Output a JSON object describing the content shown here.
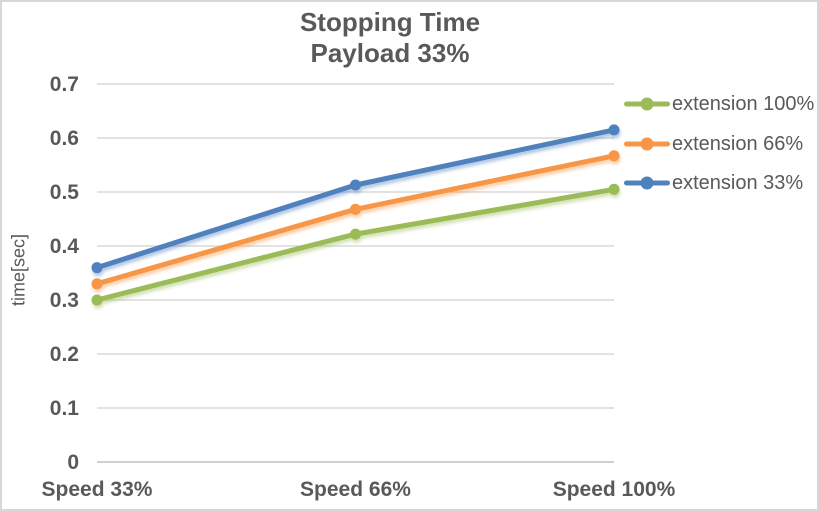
{
  "window": {
    "background": "#ffffff",
    "border_color": "#d7d7d7"
  },
  "chart_data": {
    "type": "line",
    "title": "Stopping Time",
    "subtitle": "Payload 33%",
    "title_color": "#595959",
    "categories": [
      "Speed 33%",
      "Speed 66%",
      "Speed 100%"
    ],
    "series": [
      {
        "name": "extension 100%",
        "color": "#9BBB59",
        "values": [
          0.3,
          0.422,
          0.505
        ]
      },
      {
        "name": "extension 66%",
        "color": "#F79646",
        "values": [
          0.33,
          0.468,
          0.567
        ]
      },
      {
        "name": "extension 33%",
        "color": "#4F81BD",
        "values": [
          0.36,
          0.513,
          0.615
        ]
      }
    ],
    "xlabel": "",
    "ylabel": "time[sec]",
    "ylim": [
      0,
      0.7
    ],
    "ytick_labels": [
      "0",
      "0.1",
      "0.2",
      "0.3",
      "0.4",
      "0.5",
      "0.6",
      "0.7"
    ],
    "grid": true,
    "gridline_color": "#D9D9D9",
    "axis_line_color": "#BFBFBF",
    "axis_text_color": "#595959",
    "legend_position": "right",
    "marker": "circle"
  }
}
